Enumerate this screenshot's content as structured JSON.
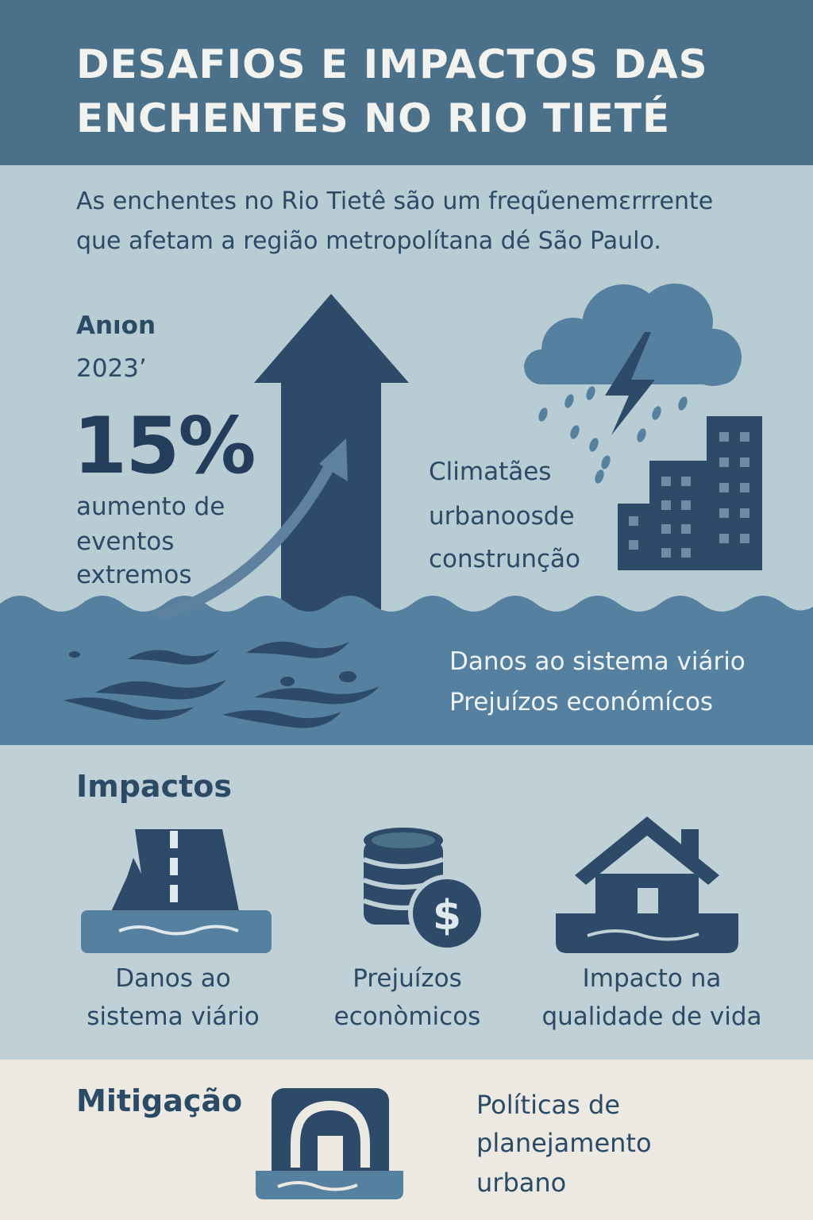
{
  "header": {
    "title_line1": "DESAFIOS E IMPACTOS DAS",
    "title_line2": "ENCHENTES NO RIO TIETÉ"
  },
  "intro": {
    "line1": "As enchentes no Rio Tietê são um freqũenemɛrrrente",
    "line2": "que afetam a região metropolítana dé São Paulo."
  },
  "stat": {
    "label": "Anıon",
    "year": "2023’",
    "value": "15%",
    "desc_line1": "aumento de",
    "desc_line2": "eventos",
    "desc_line3": "extremos"
  },
  "climate": {
    "line1": "Climatães",
    "line2": "urbanoosde",
    "line3": "construnção"
  },
  "water": {
    "line1": "Danos ao sistema viário",
    "line2": "Prejuízos económícos"
  },
  "impacts": {
    "title": "Impactos",
    "items": [
      {
        "line1": "Danos ao",
        "line2": "sistema viário",
        "icon": "flooded-road-icon"
      },
      {
        "line1": "Prejuízos",
        "line2": "econòmicos",
        "icon": "coins-dollar-icon"
      },
      {
        "line1": "Impacto na",
        "line2": "qualidade de vida",
        "icon": "flooded-house-icon"
      }
    ]
  },
  "mitigation": {
    "title": "Mitigação",
    "icon": "drainage-tunnel-icon",
    "line1": "Políticas de",
    "line2": "planejamento",
    "line3": "urbano"
  },
  "colors": {
    "header_bg": "#4b7089",
    "dark_navy": "#243d5a",
    "water": "#56809f",
    "light_bg": "#b8ccd4",
    "mitigation_bg": "#ece9e2"
  }
}
